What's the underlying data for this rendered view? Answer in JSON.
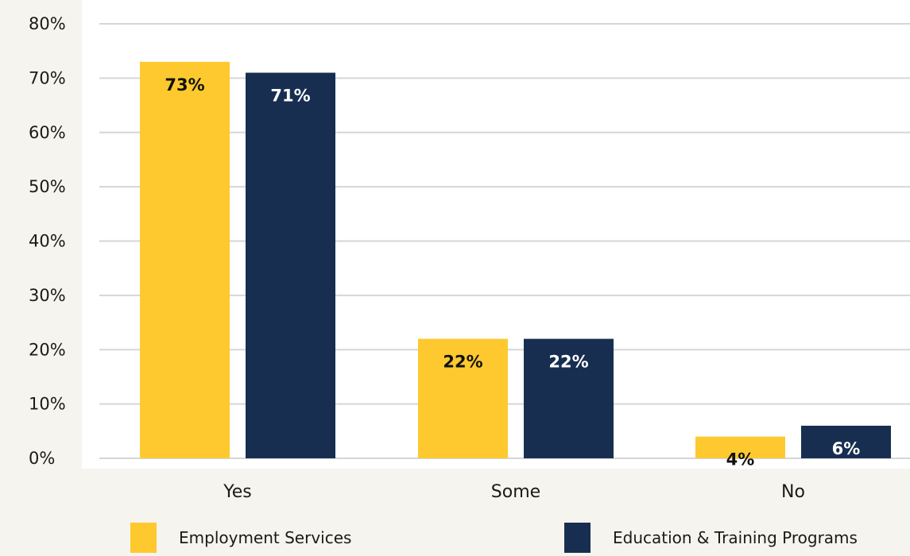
{
  "chart_data": {
    "type": "bar",
    "categories": [
      "Yes",
      "Some",
      "No"
    ],
    "series": [
      {
        "name": "Employment Services",
        "values": [
          73,
          22,
          4
        ],
        "labels": [
          "73%",
          "22%",
          "4%"
        ],
        "color": "#fdc92e",
        "label_color": "#111111"
      },
      {
        "name": "Education & Training Programs",
        "values": [
          71,
          22,
          6
        ],
        "labels": [
          "71%",
          "22%",
          "6%"
        ],
        "color": "#172e51",
        "label_color": "#ffffff"
      }
    ],
    "yticks": [
      "0%",
      "10%",
      "20%",
      "30%",
      "40%",
      "50%",
      "60%",
      "70%",
      "80%"
    ],
    "ylim": [
      0,
      80
    ],
    "grid": true,
    "legend": "bottom"
  }
}
